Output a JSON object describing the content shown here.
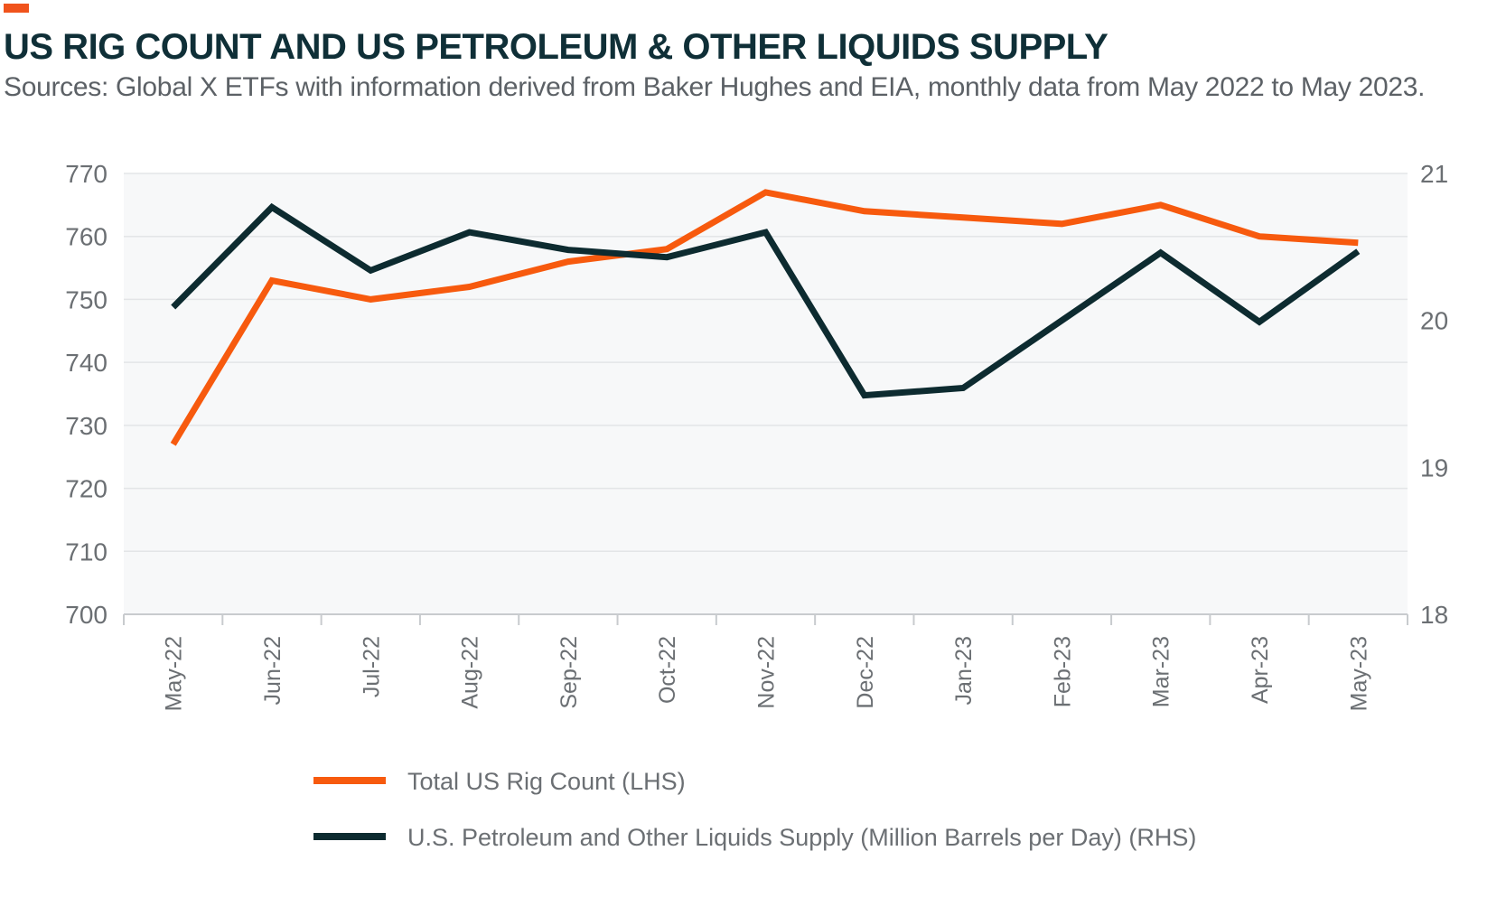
{
  "header": {
    "title": "US RIG COUNT AND US PETROLEUM & OTHER LIQUIDS SUPPLY",
    "subtitle": "Sources: Global X ETFs with information derived from Baker Hughes and EIA, monthly data from May 2022 to May 2023."
  },
  "colors": {
    "accent": "#f0531c",
    "title": "#0f2f37",
    "subtitle": "#5c6166",
    "plot_bg": "#f7f8f9",
    "grid": "#e3e5e7",
    "axis": "#c8cbce",
    "tick_text": "#6b6f73",
    "series_1": "#f75a0e",
    "series_2": "#0d2b30"
  },
  "chart_data": {
    "type": "line",
    "categories": [
      "May-22",
      "Jun-22",
      "Jul-22",
      "Aug-22",
      "Sep-22",
      "Oct-22",
      "Nov-22",
      "Dec-22",
      "Jan-23",
      "Feb-23",
      "Mar-23",
      "Apr-23",
      "May-23"
    ],
    "y_left": {
      "min": 700,
      "max": 770,
      "ticks": [
        700,
        710,
        720,
        730,
        740,
        750,
        760,
        770
      ]
    },
    "y_right": {
      "min": 18,
      "max": 21,
      "ticks": [
        18,
        19,
        20,
        21
      ]
    },
    "grid": true,
    "legend_position": "bottom",
    "series": [
      {
        "name": "Total US Rig Count (LHS)",
        "axis": "left",
        "values": [
          727,
          753,
          750,
          752,
          756,
          758,
          767,
          764,
          763,
          762,
          765,
          760,
          759
        ]
      },
      {
        "name": "U.S. Petroleum and Other Liquids Supply (Million Barrels per Day) (RHS)",
        "axis": "right",
        "values": [
          20.09,
          20.77,
          20.34,
          20.6,
          20.48,
          20.43,
          20.6,
          19.49,
          19.54,
          20.0,
          20.46,
          19.99,
          20.47
        ]
      }
    ]
  }
}
